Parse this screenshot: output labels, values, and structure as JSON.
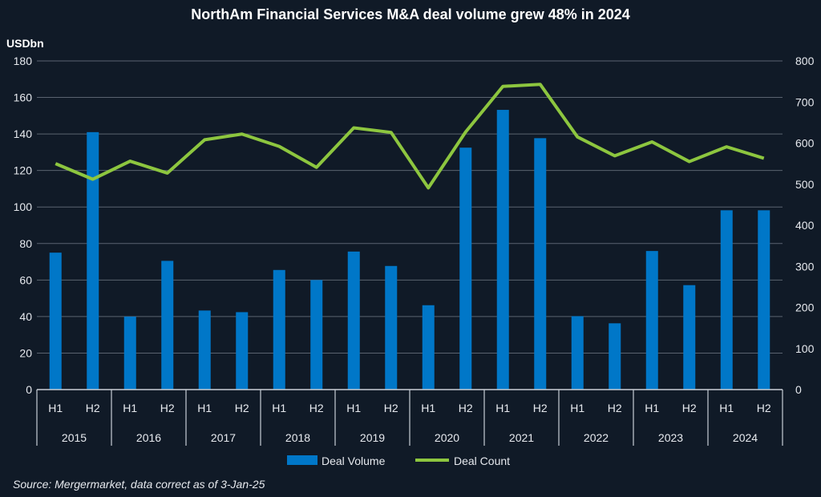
{
  "chart_data": {
    "type": "bar+line",
    "title": "NorthAm Financial Services M&A deal volume grew 48% in 2024",
    "ylabel": "USDbn",
    "ylim": [
      0,
      180
    ],
    "yticks": [
      0,
      20,
      40,
      60,
      80,
      100,
      120,
      140,
      160,
      180
    ],
    "y2lim": [
      0,
      800
    ],
    "y2ticks": [
      0,
      100,
      200,
      300,
      400,
      500,
      600,
      700,
      800
    ],
    "grid": true,
    "legend": "bottom",
    "categories": [
      "H1",
      "H2",
      "H1",
      "H2",
      "H1",
      "H2",
      "H1",
      "H2",
      "H1",
      "H2",
      "H1",
      "H2",
      "H1",
      "H2",
      "H1",
      "H2",
      "H1",
      "H2",
      "H1",
      "H2"
    ],
    "groups": [
      "2015",
      "2016",
      "2017",
      "2018",
      "2019",
      "2020",
      "2021",
      "2022",
      "2023",
      "2024"
    ],
    "series": [
      {
        "name": "Deal Volume",
        "type": "bar",
        "axis": "left",
        "color": "#0077c8",
        "values": [
          75,
          141,
          40,
          70.5,
          43.3,
          42.4,
          65.5,
          60,
          75.6,
          67.7,
          46.2,
          132.5,
          153.2,
          137.7,
          40.2,
          36.3,
          75.9,
          57.2,
          98.2,
          98.2
        ]
      },
      {
        "name": "Deal Count",
        "type": "line",
        "axis": "right",
        "color": "#8dc63f",
        "values": [
          550,
          512,
          556,
          527,
          608,
          622,
          592,
          541,
          637,
          626,
          491,
          627,
          738,
          743,
          615,
          569,
          603,
          555,
          591,
          563
        ]
      }
    ],
    "source": "Source: Mergermarket, data correct as of 3-Jan-25"
  }
}
